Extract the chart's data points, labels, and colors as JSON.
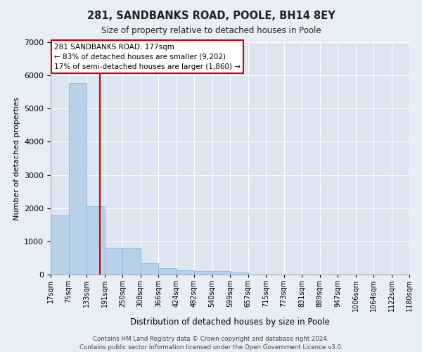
{
  "title": "281, SANDBANKS ROAD, POOLE, BH14 8EY",
  "subtitle": "Size of property relative to detached houses in Poole",
  "xlabel": "Distribution of detached houses by size in Poole",
  "ylabel": "Number of detached properties",
  "bar_color": "#b8d0e8",
  "bar_edge_color": "#7aafd4",
  "vline_color": "#cc0000",
  "annotation_line1": "281 SANDBANKS ROAD: 177sqm",
  "annotation_line2": "← 83% of detached houses are smaller (9,202)",
  "annotation_line3": "17% of semi-detached houses are larger (1,860) →",
  "annotation_box_edgecolor": "#cc0000",
  "bin_labels": [
    "17sqm",
    "75sqm",
    "133sqm",
    "191sqm",
    "250sqm",
    "308sqm",
    "366sqm",
    "424sqm",
    "482sqm",
    "540sqm",
    "599sqm",
    "657sqm",
    "715sqm",
    "773sqm",
    "831sqm",
    "889sqm",
    "947sqm",
    "1006sqm",
    "1064sqm",
    "1122sqm",
    "1180sqm"
  ],
  "bar_heights": [
    1780,
    5780,
    2060,
    800,
    800,
    340,
    200,
    125,
    110,
    100,
    70,
    0,
    0,
    0,
    0,
    0,
    0,
    0,
    0,
    0
  ],
  "n_bars": 20,
  "vline_pos": 2.759,
  "ylim": [
    0,
    7000
  ],
  "yticks": [
    0,
    1000,
    2000,
    3000,
    4000,
    5000,
    6000,
    7000
  ],
  "fig_facecolor": "#e8eef5",
  "ax_facecolor": "#dde6f0",
  "grid_color": "#ffffff",
  "footnote": "Contains HM Land Registry data © Crown copyright and database right 2024.\nContains public sector information licensed under the Open Government Licence v3.0."
}
